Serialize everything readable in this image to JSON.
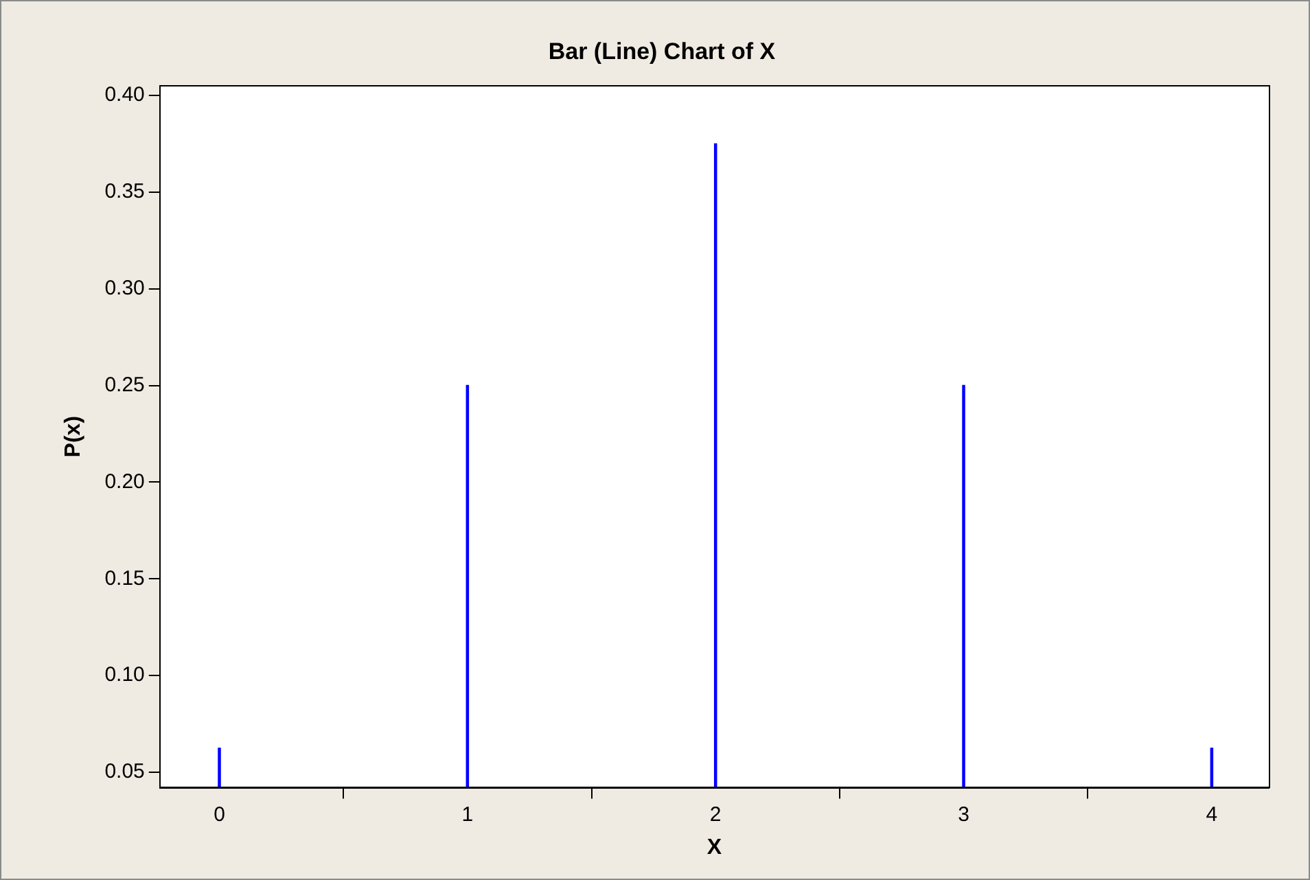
{
  "chart_data": {
    "type": "bar",
    "title": "Bar (Line) Chart of X",
    "xlabel": "X",
    "ylabel": "P(x)",
    "x": [
      0,
      1,
      2,
      3,
      4
    ],
    "values": [
      0.0625,
      0.25,
      0.375,
      0.25,
      0.0625
    ],
    "color": "#0000ff",
    "xlim": [
      -0.24,
      4.23
    ],
    "xticks": [
      0,
      1,
      2,
      3,
      4
    ],
    "ylim": [
      0.042,
      0.405
    ],
    "yticks": [
      {
        "value": 0.05,
        "label": "0.05"
      },
      {
        "value": 0.1,
        "label": "0.10"
      },
      {
        "value": 0.15,
        "label": "0.15"
      },
      {
        "value": 0.2,
        "label": "0.20"
      },
      {
        "value": 0.25,
        "label": "0.25"
      },
      {
        "value": 0.3,
        "label": "0.30"
      },
      {
        "value": 0.35,
        "label": "0.35"
      },
      {
        "value": 0.4,
        "label": "0.40"
      }
    ],
    "grid": false,
    "legend": false
  }
}
